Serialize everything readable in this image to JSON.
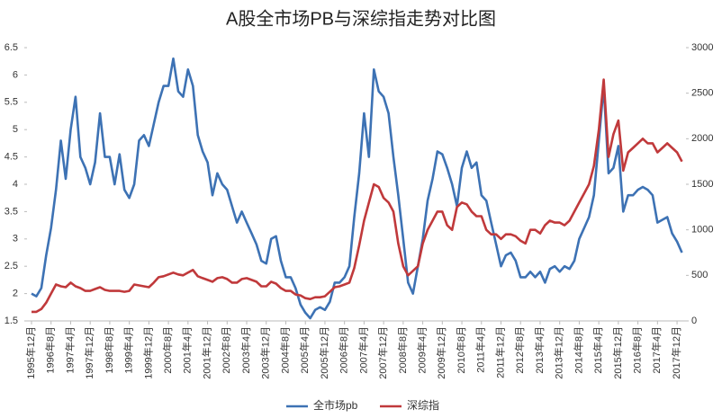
{
  "chart_data": {
    "type": "line",
    "title": "A股全市场PB与深综指走势对比图",
    "categories": [
      "1995年12月",
      null,
      null,
      null,
      "1996年8月",
      null,
      null,
      null,
      "1997年4月",
      null,
      null,
      null,
      "1997年12月",
      null,
      null,
      null,
      "1998年8月",
      null,
      null,
      null,
      "1999年4月",
      null,
      null,
      null,
      "1999年12月",
      null,
      null,
      null,
      "2000年8月",
      null,
      null,
      null,
      "2001年4月",
      null,
      null,
      null,
      "2001年12月",
      null,
      null,
      null,
      "2002年8月",
      null,
      null,
      null,
      "2003年4月",
      null,
      null,
      null,
      "2003年12月",
      null,
      null,
      null,
      "2004年8月",
      null,
      null,
      null,
      "2005年4月",
      null,
      null,
      null,
      "2005年12月",
      null,
      null,
      null,
      "2006年8月",
      null,
      null,
      null,
      "2007年4月",
      null,
      null,
      null,
      "2007年12月",
      null,
      null,
      null,
      "2008年8月",
      null,
      null,
      null,
      "2009年4月",
      null,
      null,
      null,
      "2009年12月",
      null,
      null,
      null,
      "2010年8月",
      null,
      null,
      null,
      "2011年4月",
      null,
      null,
      null,
      "2011年12月",
      null,
      null,
      null,
      "2012年8月",
      null,
      null,
      null,
      "2013年4月",
      null,
      null,
      null,
      "2013年12月",
      null,
      null,
      null,
      "2014年8月",
      null,
      null,
      null,
      "2015年4月",
      null,
      null,
      null,
      "2015年12月",
      null,
      null,
      null,
      "2016年8月",
      null,
      null,
      null,
      "2017年4月",
      null,
      null,
      null,
      "2017年12月",
      null
    ],
    "series": [
      {
        "name": "全市场pb",
        "color": "#3d72b4",
        "values": [
          2.0,
          1.95,
          2.1,
          2.7,
          3.2,
          3.9,
          4.8,
          4.1,
          5.0,
          5.6,
          4.5,
          4.3,
          4.0,
          4.4,
          5.3,
          4.5,
          4.5,
          4.0,
          4.55,
          3.9,
          3.75,
          4.0,
          4.8,
          4.9,
          4.7,
          5.1,
          5.5,
          5.8,
          5.8,
          6.3,
          5.7,
          5.6,
          6.1,
          5.8,
          4.9,
          4.6,
          4.4,
          3.8,
          4.2,
          4.0,
          3.9,
          3.6,
          3.3,
          3.5,
          3.3,
          3.1,
          2.9,
          2.6,
          2.55,
          3.0,
          3.05,
          2.6,
          2.3,
          2.3,
          2.1,
          1.8,
          1.65,
          1.55,
          1.7,
          1.75,
          1.7,
          1.85,
          2.2,
          2.2,
          2.3,
          2.5,
          3.4,
          4.2,
          5.3,
          4.5,
          6.1,
          5.7,
          5.6,
          5.3,
          4.5,
          3.8,
          3.0,
          2.2,
          2.0,
          2.5,
          3.0,
          3.7,
          4.1,
          4.6,
          4.55,
          4.3,
          4.0,
          3.6,
          4.3,
          4.6,
          4.3,
          4.4,
          3.8,
          3.7,
          3.3,
          2.9,
          2.5,
          2.7,
          2.75,
          2.6,
          2.3,
          2.3,
          2.4,
          2.3,
          2.4,
          2.2,
          2.45,
          2.5,
          2.4,
          2.5,
          2.45,
          2.6,
          3.0,
          3.2,
          3.4,
          3.8,
          4.8,
          5.8,
          4.2,
          4.3,
          4.7,
          3.5,
          3.8,
          3.8,
          3.9,
          3.95,
          3.9,
          3.8,
          3.3,
          3.35,
          3.4,
          3.1,
          2.95,
          2.75
        ]
      },
      {
        "name": "深综指",
        "color": "#c0393b",
        "axis": "y2",
        "values": [
          100,
          100,
          130,
          200,
          300,
          400,
          380,
          370,
          420,
          380,
          360,
          330,
          330,
          350,
          370,
          340,
          330,
          330,
          330,
          320,
          330,
          400,
          390,
          380,
          370,
          420,
          480,
          490,
          510,
          530,
          510,
          500,
          530,
          560,
          490,
          470,
          450,
          430,
          470,
          480,
          460,
          420,
          420,
          460,
          470,
          450,
          430,
          380,
          380,
          430,
          410,
          360,
          330,
          330,
          290,
          280,
          250,
          240,
          260,
          260,
          270,
          320,
          370,
          380,
          400,
          420,
          580,
          830,
          1100,
          1300,
          1500,
          1470,
          1350,
          1300,
          1200,
          850,
          600,
          500,
          550,
          600,
          850,
          1000,
          1100,
          1200,
          1200,
          1050,
          1000,
          1250,
          1300,
          1280,
          1200,
          1150,
          1150,
          1000,
          950,
          950,
          900,
          950,
          950,
          930,
          880,
          850,
          1000,
          1000,
          960,
          1050,
          1100,
          1080,
          1080,
          1050,
          1100,
          1200,
          1300,
          1400,
          1500,
          1700,
          2100,
          2650,
          1800,
          2050,
          2200,
          1650,
          1850,
          1900,
          1950,
          2000,
          1950,
          1950,
          1850,
          1900,
          1950,
          1900,
          1850,
          1750
        ]
      }
    ],
    "ylim": [
      1.5,
      6.5
    ],
    "yticks": [
      1.5,
      2,
      2.5,
      3,
      3.5,
      4,
      4.5,
      5,
      5.5,
      6,
      6.5
    ],
    "y2lim": [
      0,
      3000
    ],
    "y2ticks": [
      0,
      500,
      1000,
      1500,
      2000,
      2500,
      3000
    ],
    "legend": "bottom"
  }
}
